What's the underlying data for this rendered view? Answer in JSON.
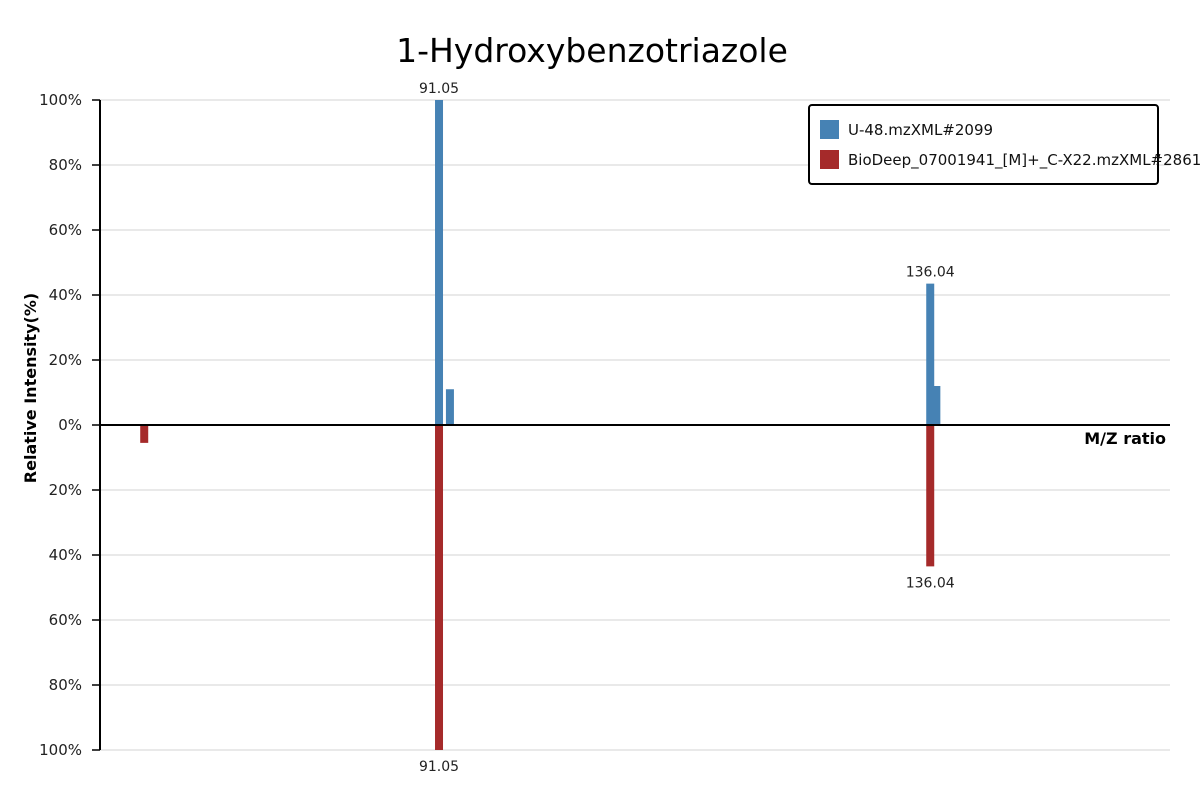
{
  "chart_data": {
    "type": "bar",
    "subtype": "mirror-spectrum",
    "title": "1-Hydroxybenzotriazole",
    "xlabel": "M/Z ratio",
    "ylabel": "Relative Intensity(%)",
    "y_ticks_top": [
      "100%",
      "80%",
      "60%",
      "40%",
      "20%",
      "0%"
    ],
    "y_ticks_bottom": [
      "20%",
      "40%",
      "60%",
      "80%",
      "100%"
    ],
    "ylim": [
      -100,
      100
    ],
    "xlim": [
      60,
      158
    ],
    "grid": true,
    "legend_position": "top-right",
    "series": [
      {
        "name": "U-48.mzXML#2099",
        "color": "#4682b4",
        "direction": "up",
        "peaks": [
          {
            "mz": 91.05,
            "intensity": 100,
            "label": "91.05"
          },
          {
            "mz": 92.05,
            "intensity": 11
          },
          {
            "mz": 136.04,
            "intensity": 43.5,
            "label": "136.04"
          },
          {
            "mz": 136.6,
            "intensity": 12
          }
        ]
      },
      {
        "name": "BioDeep_07001941_[M]+_C-X22.mzXML#2861",
        "color": "#a52a2a",
        "direction": "down",
        "peaks": [
          {
            "mz": 64.05,
            "intensity": 5.5
          },
          {
            "mz": 91.05,
            "intensity": 100,
            "label": "91.05"
          },
          {
            "mz": 136.04,
            "intensity": 43.5,
            "label": "136.04"
          }
        ]
      }
    ]
  }
}
